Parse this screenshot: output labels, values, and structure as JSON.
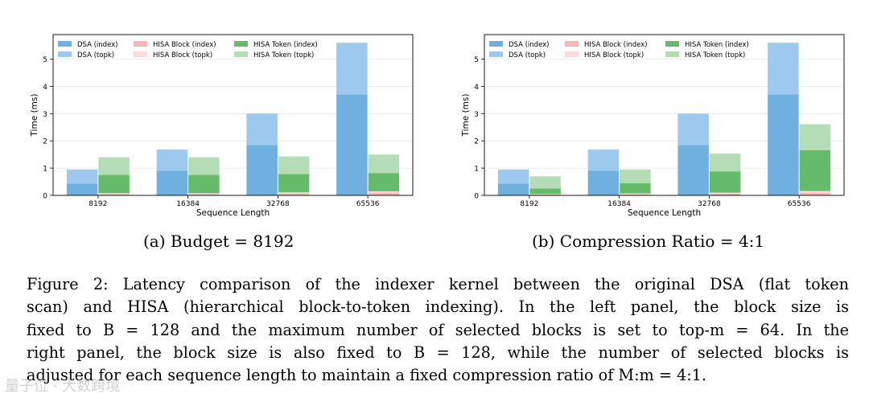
{
  "chart_data": [
    {
      "type": "bar",
      "stacked": true,
      "xlabel": "Sequence Length",
      "ylabel": "Time (ms)",
      "ylim": [
        0,
        5.9
      ],
      "yticks": [
        "0",
        "1",
        "2",
        "3",
        "4",
        "5"
      ],
      "categories": [
        "8192",
        "16384",
        "32768",
        "65536"
      ],
      "grid": "horizontal",
      "legend_position": "top-left",
      "series": [
        {
          "name": "DSA (index)",
          "group": "DSA",
          "color": "#6fb0e0",
          "values": [
            0.43,
            0.9,
            1.85,
            3.7
          ]
        },
        {
          "name": "DSA (topk)",
          "group": "DSA",
          "color": "#9ec9ee",
          "values": [
            0.52,
            0.78,
            1.15,
            1.9
          ]
        },
        {
          "name": "HISA Block (index)",
          "group": "HISA",
          "color": "#f7b7b7",
          "values": [
            0.05,
            0.05,
            0.07,
            0.1
          ]
        },
        {
          "name": "HISA Block (topk)",
          "group": "HISA",
          "color": "#fbdcdc",
          "values": [
            0.03,
            0.03,
            0.04,
            0.05
          ]
        },
        {
          "name": "HISA Token (index)",
          "group": "HISA",
          "color": "#66bb6a",
          "values": [
            0.67,
            0.67,
            0.67,
            0.67
          ]
        },
        {
          "name": "HISA Token (topk)",
          "group": "HISA",
          "color": "#b4dcb5",
          "values": [
            0.65,
            0.65,
            0.65,
            0.68
          ]
        }
      ]
    },
    {
      "type": "bar",
      "stacked": true,
      "xlabel": "Sequence Length",
      "ylabel": "Time (ms)",
      "ylim": [
        0,
        5.9
      ],
      "yticks": [
        "0",
        "1",
        "2",
        "3",
        "4",
        "5"
      ],
      "categories": [
        "8192",
        "16384",
        "32768",
        "65536"
      ],
      "grid": "horizontal",
      "legend_position": "top-left",
      "series": [
        {
          "name": "DSA (index)",
          "group": "DSA",
          "color": "#6fb0e0",
          "values": [
            0.43,
            0.9,
            1.85,
            3.7
          ]
        },
        {
          "name": "DSA (topk)",
          "group": "DSA",
          "color": "#9ec9ee",
          "values": [
            0.52,
            0.78,
            1.15,
            1.9
          ]
        },
        {
          "name": "HISA Block (index)",
          "group": "HISA",
          "color": "#f7b7b7",
          "values": [
            0.03,
            0.04,
            0.06,
            0.1
          ]
        },
        {
          "name": "HISA Block (topk)",
          "group": "HISA",
          "color": "#fbdcdc",
          "values": [
            0.02,
            0.03,
            0.04,
            0.06
          ]
        },
        {
          "name": "HISA Token (index)",
          "group": "HISA",
          "color": "#66bb6a",
          "values": [
            0.2,
            0.38,
            0.78,
            1.5
          ]
        },
        {
          "name": "HISA Token (topk)",
          "group": "HISA",
          "color": "#b4dcb5",
          "values": [
            0.45,
            0.5,
            0.65,
            0.95
          ]
        }
      ]
    }
  ],
  "subcaptions": [
    "(a) Budget = 8192",
    "(b) Compression Ratio = 4:1"
  ],
  "caption_lines": [
    "Figure 2: Latency comparison of the indexer kernel between the original DSA (flat token",
    "scan) and HISA (hierarchical block-to-token indexing). In the left panel, the block size is",
    "fixed to B = 128 and the maximum number of selected blocks is set to top-m = 64. In the",
    "right panel, the block size is also fixed to B = 128, while the number of selected blocks is",
    "adjusted for each sequence length to maintain a fixed compression ratio of M:m = 4:1."
  ],
  "watermark": "量子位 · 大数跨境"
}
